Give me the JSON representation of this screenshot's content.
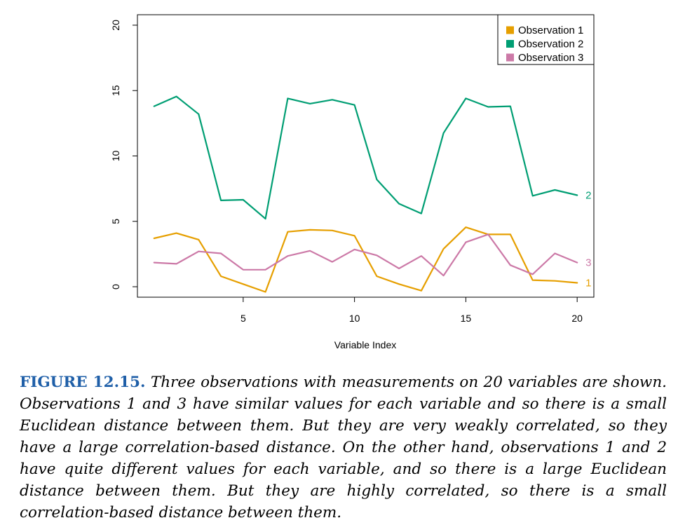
{
  "chart_data": {
    "type": "line",
    "xlabel": "Variable Index",
    "ylabel": "",
    "xlim": [
      0.25,
      20.75
    ],
    "ylim": [
      -0.8,
      20.8
    ],
    "xticks": [
      "5",
      "10",
      "15",
      "20"
    ],
    "yticks": [
      "0",
      "5",
      "10",
      "15",
      "20"
    ],
    "x": [
      1,
      2,
      3,
      4,
      5,
      6,
      7,
      8,
      9,
      10,
      11,
      12,
      13,
      14,
      15,
      16,
      17,
      18,
      19,
      20
    ],
    "grid": false,
    "legend_position": "top-right",
    "series": [
      {
        "name": "Observation 1",
        "end_label": "1",
        "color": "#E69F00",
        "values": [
          3.7,
          4.1,
          3.6,
          0.8,
          0.2,
          -0.4,
          4.2,
          4.35,
          4.3,
          3.9,
          0.8,
          0.2,
          -0.3,
          2.9,
          4.55,
          4.0,
          4.0,
          0.5,
          0.45,
          0.3
        ]
      },
      {
        "name": "Observation 2",
        "end_label": "2",
        "color": "#009E73",
        "values": [
          13.8,
          14.55,
          13.2,
          6.6,
          6.65,
          5.2,
          14.4,
          14.0,
          14.3,
          13.9,
          8.2,
          6.35,
          5.6,
          11.75,
          14.4,
          13.75,
          13.8,
          6.95,
          7.4,
          7.0
        ]
      },
      {
        "name": "Observation 3",
        "end_label": "3",
        "color": "#CC79A7",
        "values": [
          1.85,
          1.75,
          2.7,
          2.55,
          1.3,
          1.3,
          2.35,
          2.75,
          1.9,
          2.85,
          2.4,
          1.4,
          2.35,
          0.85,
          3.4,
          4.0,
          1.65,
          0.95,
          2.55,
          1.85
        ]
      }
    ]
  },
  "caption": {
    "label": "FIGURE 12.15.",
    "text": "Three observations with measurements on 20 variables are shown. Observations 1 and 3 have similar values for each variable and so there is a small Euclidean distance between them. But they are very weakly correlated, so they have a large correlation-based distance. On the other hand, observations 1 and 2 have quite different values for each variable, and so there is a large Euclidean distance between them. But they are highly correlated, so there is a small correlation-based distance between them."
  }
}
